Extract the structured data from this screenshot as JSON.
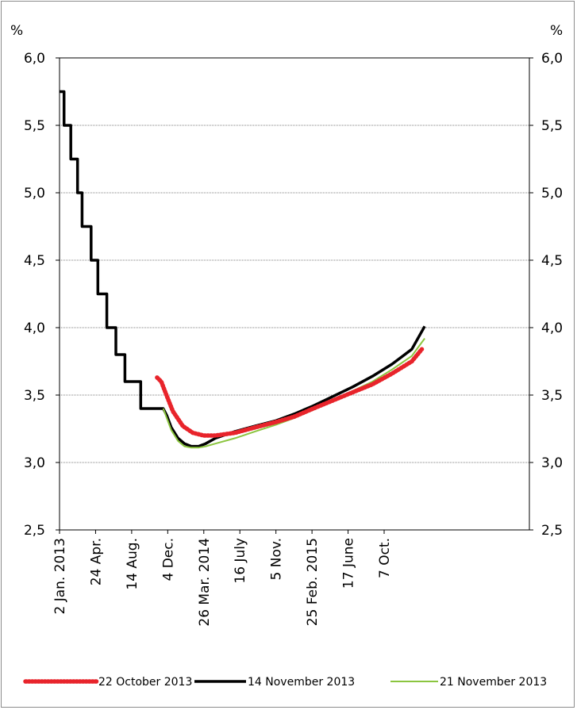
{
  "chart_data": {
    "type": "line",
    "left_unit": "%",
    "right_unit": "%",
    "ylim": [
      2.5,
      6.0
    ],
    "y_ticks": [
      "2,5",
      "3,0",
      "3,5",
      "4,0",
      "4,5",
      "5,0",
      "5,5",
      "6,0"
    ],
    "y_tick_values": [
      2.5,
      3.0,
      3.5,
      4.0,
      4.5,
      5.0,
      5.5,
      6.0
    ],
    "xlim": [
      "2013-01-02",
      "2016-12-31"
    ],
    "x_ticks": [
      {
        "label": "2 Jan. 2013",
        "date": "2013-01-02"
      },
      {
        "label": "24 Apr.",
        "date": "2013-04-24"
      },
      {
        "label": "14 Aug.",
        "date": "2013-08-14"
      },
      {
        "label": "4 Dec.",
        "date": "2013-12-04"
      },
      {
        "label": "26 Mar. 2014",
        "date": "2014-03-26"
      },
      {
        "label": "16 July",
        "date": "2014-07-16"
      },
      {
        "label": "5 Nov.",
        "date": "2014-11-05"
      },
      {
        "label": "25 Feb. 2015",
        "date": "2015-02-25"
      },
      {
        "label": "17 June",
        "date": "2015-06-17"
      },
      {
        "label": "7 Oct.",
        "date": "2015-10-07"
      }
    ],
    "grid": "horizontal",
    "legend_position": "bottom",
    "series": [
      {
        "name": "22 October 2013",
        "color": "#e8242b",
        "style": "dotted",
        "x": [
          "2013-11-01",
          "2013-11-14",
          "2013-11-30",
          "2013-12-20",
          "2014-01-20",
          "2014-02-20",
          "2014-03-26",
          "2014-05-01",
          "2014-07-01",
          "2014-09-01",
          "2014-11-05",
          "2015-01-01",
          "2015-03-01",
          "2015-05-01",
          "2015-07-01",
          "2015-09-01",
          "2015-11-01",
          "2016-01-01",
          "2016-02-01"
        ],
        "y": [
          3.63,
          3.6,
          3.5,
          3.38,
          3.27,
          3.22,
          3.2,
          3.2,
          3.22,
          3.26,
          3.3,
          3.34,
          3.4,
          3.46,
          3.52,
          3.58,
          3.66,
          3.75,
          3.84
        ]
      },
      {
        "name": "14 November 2013",
        "color": "#000000",
        "style": "solid",
        "x": [
          "2013-01-02",
          "2013-01-16",
          "2013-01-16",
          "2013-02-06",
          "2013-02-06",
          "2013-02-27",
          "2013-02-27",
          "2013-03-13",
          "2013-03-13",
          "2013-04-10",
          "2013-04-10",
          "2013-05-01",
          "2013-05-01",
          "2013-05-29",
          "2013-05-29",
          "2013-06-26",
          "2013-06-26",
          "2013-07-24",
          "2013-07-24",
          "2013-09-11",
          "2013-09-11",
          "2013-10-02",
          "2013-10-02",
          "2013-11-13",
          "2013-11-13",
          "2013-11-20",
          "2013-11-20",
          "2013-12-01",
          "2013-12-15",
          "2014-01-05",
          "2014-01-25",
          "2014-02-15",
          "2014-03-10",
          "2014-04-01",
          "2014-05-01",
          "2014-07-01",
          "2014-09-01",
          "2014-11-05",
          "2015-01-01",
          "2015-03-01",
          "2015-05-01",
          "2015-07-01",
          "2015-09-01",
          "2015-11-01",
          "2016-01-01",
          "2016-02-10"
        ],
        "y": [
          5.75,
          5.75,
          5.5,
          5.5,
          5.25,
          5.25,
          5.0,
          5.0,
          4.75,
          4.75,
          4.5,
          4.5,
          4.25,
          4.25,
          4.0,
          4.0,
          3.8,
          3.8,
          3.6,
          3.6,
          3.4,
          3.4,
          3.4,
          3.4,
          3.4,
          3.4,
          3.4,
          3.35,
          3.26,
          3.18,
          3.14,
          3.12,
          3.12,
          3.14,
          3.18,
          3.23,
          3.27,
          3.31,
          3.36,
          3.42,
          3.49,
          3.56,
          3.64,
          3.73,
          3.84,
          4.01
        ]
      },
      {
        "name": "21 November 2013",
        "color": "#8bc53f",
        "style": "solid",
        "x": [
          "2013-11-20",
          "2013-12-01",
          "2013-12-15",
          "2014-01-05",
          "2014-01-25",
          "2014-02-15",
          "2014-03-10",
          "2014-04-01",
          "2014-05-01",
          "2014-07-01",
          "2014-09-01",
          "2014-11-05",
          "2015-01-01",
          "2015-03-01",
          "2015-05-01",
          "2015-07-01",
          "2015-09-01",
          "2015-11-01",
          "2016-01-01",
          "2016-02-10"
        ],
        "y": [
          3.4,
          3.33,
          3.24,
          3.16,
          3.12,
          3.11,
          3.11,
          3.12,
          3.14,
          3.18,
          3.23,
          3.28,
          3.33,
          3.39,
          3.46,
          3.53,
          3.6,
          3.69,
          3.79,
          3.92
        ]
      }
    ]
  }
}
